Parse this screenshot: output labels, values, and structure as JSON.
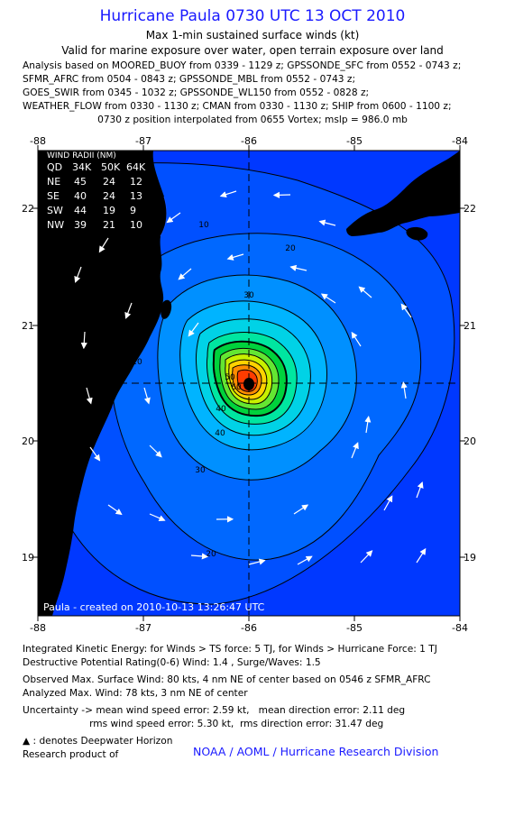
{
  "header": {
    "title": "Hurricane Paula 0730 UTC 13 OCT 2010",
    "subtitle": "Max 1-min sustained surface winds (kt)",
    "valid": "Valid for marine exposure over water, open terrain exposure over land",
    "analysis_lines": [
      "Analysis based on MOORED_BUOY from 0339 - 1129 z; GPSSONDE_SFC from 0552 - 0743 z;",
      "SFMR_AFRC from 0504 - 0843 z; GPSSONDE_MBL from 0552 - 0743 z;",
      "GOES_SWIR from 0345 - 1032 z; GPSSONDE_WL150 from 0552 - 0828 z;",
      "WEATHER_FLOW from 0330 - 1130 z; CMAN from 0330 - 1130 z; SHIP from 0600 - 1100 z;",
      "0730 z position interpolated from 0655 Vortex; mslp = 986.0 mb"
    ]
  },
  "map": {
    "lon_ticks": [
      "-88",
      "-87",
      "-86",
      "-85",
      "-84"
    ],
    "lat_ticks": [
      "22",
      "21",
      "20",
      "19"
    ],
    "center": {
      "lon": -86.0,
      "lat": 20.5
    },
    "contour_labels": [
      "10",
      "20",
      "30",
      "40",
      "50",
      "60",
      "10",
      "20",
      "30",
      "40",
      "20"
    ],
    "credit": "Paula - created on 2010-10-13 13:26:47 UTC",
    "colors": {
      "ocean_outer": "#0044ff",
      "land": "#000000",
      "center": "#000000"
    }
  },
  "wind_radii": {
    "title": "WIND RADII (NM)",
    "header": [
      "QD",
      "34K",
      "50K",
      "64K"
    ],
    "rows": [
      [
        "NE",
        "45",
        "24",
        "12"
      ],
      [
        "SE",
        "40",
        "24",
        "13"
      ],
      [
        "SW",
        "44",
        "19",
        "9"
      ],
      [
        "NW",
        "39",
        "21",
        "10"
      ]
    ]
  },
  "footer": {
    "lines": [
      "Integrated Kinetic Energy:  for Winds > TS force: 5 TJ,  for Winds > Hurricane Force: 1 TJ",
      "Destructive Potential Rating(0-6)   Wind: 1.4 , Surge/Waves: 1.5",
      "Observed Max. Surface Wind: 80 kts, 4 nm NE of center based on 0546 z SFMR_AFRC",
      "Analyzed Max. Wind: 78 kts, 3 nm NE of center",
      "Uncertainty -> mean wind speed error: 2.59 kt,   mean direction error: 2.11 deg",
      "                      rms wind speed error: 5.30 kt,  rms direction error: 31.47 deg",
      "▲ : denotes Deepwater Horizon",
      "Research product of"
    ],
    "credit": "NOAA / AOML / Hurricane Research Division"
  }
}
